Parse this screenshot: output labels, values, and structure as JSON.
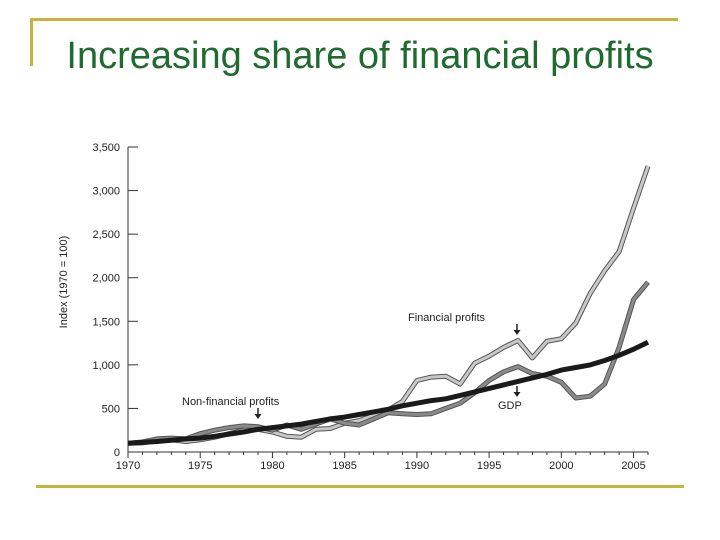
{
  "slide": {
    "title": "Increasing share of financial profits"
  },
  "chart_data": {
    "type": "line",
    "title": "",
    "xlabel": "",
    "ylabel": "Index (1970 = 100)",
    "xlim": [
      1970,
      2006
    ],
    "ylim": [
      0,
      3500
    ],
    "x_ticks": [
      1970,
      1975,
      1980,
      1985,
      1990,
      1995,
      2000,
      2005
    ],
    "y_ticks": [
      0,
      500,
      1000,
      1500,
      2000,
      2500,
      3000,
      3500
    ],
    "y_tick_labels": [
      "0",
      "500",
      "1,000",
      "1,500",
      "2,000",
      "2,500",
      "3,000",
      "3,500"
    ],
    "grid": false,
    "legend": "none",
    "annotations": [
      {
        "text": "Non-financial profits",
        "series": "Non-financial profits"
      },
      {
        "text": "Financial profits",
        "series": "Financial profits"
      },
      {
        "text": "GDP",
        "series": "GDP"
      }
    ],
    "x": [
      1970,
      1971,
      1972,
      1973,
      1974,
      1975,
      1976,
      1977,
      1978,
      1979,
      1980,
      1981,
      1982,
      1983,
      1984,
      1985,
      1986,
      1987,
      1988,
      1989,
      1990,
      1991,
      1992,
      1993,
      1994,
      1995,
      1996,
      1997,
      1998,
      1999,
      2000,
      2001,
      2002,
      2003,
      2004,
      2005,
      2006
    ],
    "series": [
      {
        "name": "Financial profits",
        "color": "#c8c8c8",
        "values": [
          100,
          105,
          130,
          140,
          120,
          140,
          170,
          210,
          250,
          260,
          230,
          180,
          170,
          260,
          270,
          330,
          360,
          420,
          480,
          580,
          820,
          860,
          870,
          780,
          1020,
          1100,
          1200,
          1280,
          1080,
          1270,
          1300,
          1480,
          1820,
          2080,
          2300,
          2800,
          3280
        ]
      },
      {
        "name": "Non-financial profits",
        "color": "#8a8a8a",
        "values": [
          100,
          115,
          150,
          160,
          150,
          210,
          250,
          280,
          300,
          290,
          250,
          310,
          260,
          320,
          380,
          330,
          310,
          380,
          450,
          440,
          430,
          440,
          500,
          560,
          680,
          820,
          920,
          980,
          900,
          870,
          800,
          620,
          640,
          780,
          1200,
          1750,
          1950
        ]
      },
      {
        "name": "GDP",
        "color": "#1a1a1a",
        "values": [
          100,
          110,
          120,
          135,
          150,
          160,
          180,
          205,
          230,
          260,
          280,
          300,
          320,
          350,
          380,
          400,
          430,
          460,
          490,
          530,
          560,
          590,
          610,
          650,
          690,
          730,
          770,
          810,
          850,
          890,
          940,
          970,
          1000,
          1050,
          1110,
          1180,
          1260
        ]
      }
    ]
  }
}
